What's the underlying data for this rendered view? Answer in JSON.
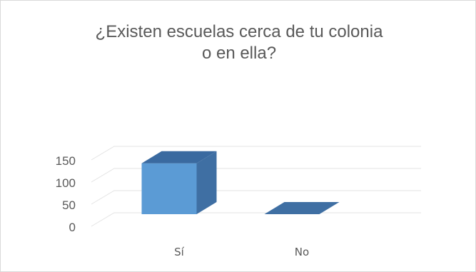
{
  "chart_data": {
    "type": "bar",
    "title": "¿Existen escuelas cerca de tu colonia o en ella?",
    "title_lines": [
      "¿Existen escuelas cerca de tu colonia",
      "o en ella?"
    ],
    "categories": [
      "Sí",
      "No"
    ],
    "values": [
      115,
      0
    ],
    "yticks": [
      "0",
      "50",
      "100",
      "150"
    ],
    "ylim": [
      0,
      150
    ],
    "grid": true,
    "three_d": true,
    "legend": "none",
    "xlabel": "",
    "ylabel": ""
  },
  "colors": {
    "bar_front": "#5b9bd5",
    "bar_side": "#3f6fa3",
    "bar_top": "#3a6aa0",
    "grid": "#e3e3e3",
    "text": "#595959"
  }
}
